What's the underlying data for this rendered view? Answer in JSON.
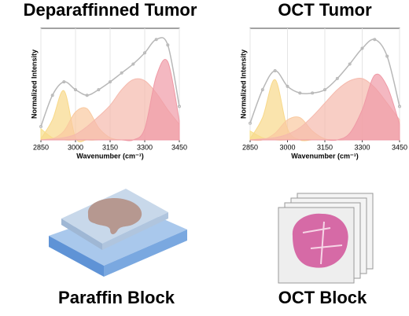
{
  "chart_data": [
    {
      "type": "line",
      "title": "Deparaffinned Tumor",
      "x_label": "Wavenumber (cm⁻¹)",
      "y_label": "Normalized Intensity",
      "x": [
        2850,
        2900,
        2950,
        3000,
        3050,
        3100,
        3150,
        3200,
        3250,
        3300,
        3350,
        3400,
        3450
      ],
      "xlim": [
        2850,
        3450
      ],
      "xticks": [
        2850,
        3000,
        3150,
        3300,
        3450
      ],
      "ylim": [
        0,
        1
      ],
      "series": [
        {
          "style": "line",
          "color": "#b8b8b8",
          "values": [
            0.12,
            0.4,
            0.52,
            0.45,
            0.4,
            0.45,
            0.52,
            0.6,
            0.68,
            0.78,
            0.9,
            0.85,
            0.3
          ]
        },
        {
          "style": "area",
          "color": "#f7e08a",
          "values": [
            0.1,
            0.02,
            0,
            0,
            0,
            0,
            0,
            0,
            0,
            0,
            0,
            0,
            0
          ]
        },
        {
          "style": "area",
          "color": "#f8d98a",
          "values": [
            0.01,
            0.18,
            0.44,
            0.02,
            0,
            0,
            0,
            0,
            0,
            0,
            0,
            0,
            0
          ]
        },
        {
          "style": "area",
          "color": "#f9c9a0",
          "values": [
            0,
            0.01,
            0.08,
            0.25,
            0.28,
            0.11,
            0.02,
            0,
            0,
            0,
            0,
            0,
            0
          ]
        },
        {
          "style": "area",
          "color": "#f5b9ad",
          "values": [
            0,
            0.01,
            0.02,
            0.05,
            0.12,
            0.21,
            0.31,
            0.45,
            0.54,
            0.53,
            0.42,
            0.27,
            0.14
          ]
        },
        {
          "style": "area",
          "color": "#ef9aa6",
          "values": [
            0,
            0,
            0,
            0,
            0,
            0,
            0,
            0,
            0,
            0.1,
            0.57,
            0.7,
            0.17
          ]
        }
      ]
    },
    {
      "type": "line",
      "title": "OCT Tumor",
      "x_label": "Wavenumber (cm⁻¹)",
      "y_label": "Normalized Intensity",
      "x": [
        2850,
        2900,
        2950,
        3000,
        3050,
        3100,
        3150,
        3200,
        3250,
        3300,
        3350,
        3400,
        3450
      ],
      "xlim": [
        2850,
        3450
      ],
      "xticks": [
        2850,
        3000,
        3150,
        3300,
        3450
      ],
      "ylim": [
        0,
        1
      ],
      "series": [
        {
          "style": "line",
          "color": "#b8b8b8",
          "values": [
            0.15,
            0.45,
            0.62,
            0.48,
            0.42,
            0.42,
            0.45,
            0.55,
            0.68,
            0.82,
            0.9,
            0.75,
            0.3
          ]
        },
        {
          "style": "area",
          "color": "#f7e08a",
          "values": [
            0.08,
            0.02,
            0,
            0,
            0,
            0,
            0,
            0,
            0,
            0,
            0,
            0,
            0
          ]
        },
        {
          "style": "area",
          "color": "#f8d98a",
          "values": [
            0.01,
            0.2,
            0.54,
            0.1,
            0,
            0,
            0,
            0,
            0,
            0,
            0,
            0,
            0
          ]
        },
        {
          "style": "area",
          "color": "#f9c9a0",
          "values": [
            0,
            0,
            0.06,
            0.18,
            0.2,
            0.08,
            0.01,
            0,
            0,
            0,
            0,
            0,
            0
          ]
        },
        {
          "style": "area",
          "color": "#f5b9ad",
          "values": [
            0,
            0.01,
            0.02,
            0.05,
            0.11,
            0.21,
            0.33,
            0.45,
            0.53,
            0.55,
            0.47,
            0.33,
            0.18
          ]
        },
        {
          "style": "area",
          "color": "#ef9aa6",
          "values": [
            0,
            0,
            0,
            0,
            0,
            0,
            0,
            0,
            0.06,
            0.27,
            0.58,
            0.48,
            0.14
          ]
        }
      ]
    }
  ],
  "captions": [
    "Paraffin Block",
    "OCT Block"
  ]
}
